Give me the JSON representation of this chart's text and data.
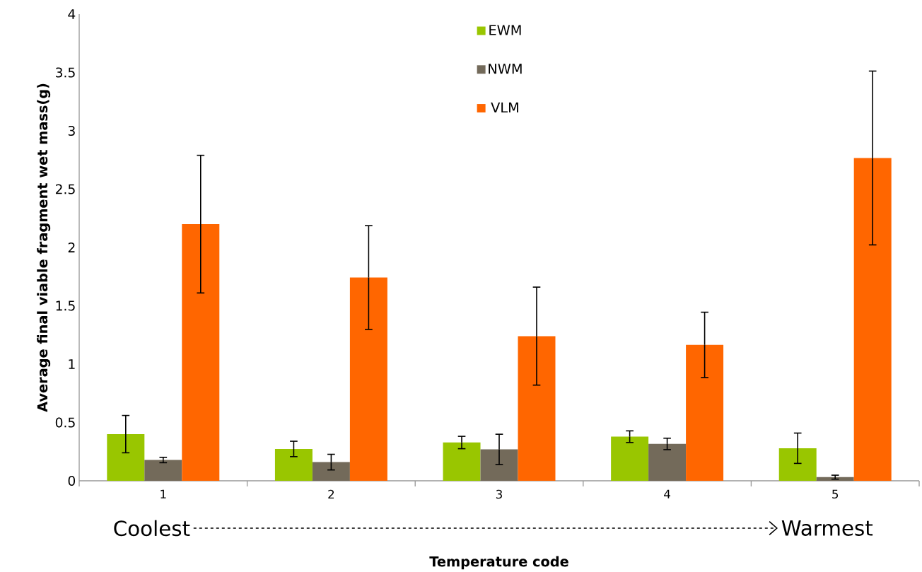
{
  "chart_data": {
    "type": "bar",
    "xlabel": "Temperature code",
    "ylabel": "Average final viable fragment wet mass(g)",
    "categories": [
      "1",
      "2",
      "3",
      "4",
      "5"
    ],
    "series": [
      {
        "name": "EWM",
        "color": "#99c600",
        "values": [
          0.4,
          0.273,
          0.328,
          0.378,
          0.279
        ],
        "errors": [
          0.16,
          0.066,
          0.053,
          0.05,
          0.13
        ]
      },
      {
        "name": "NWM",
        "color": "#736a5a",
        "values": [
          0.178,
          0.16,
          0.269,
          0.316,
          0.031
        ],
        "errors": [
          0.023,
          0.067,
          0.13,
          0.049,
          0.017
        ]
      },
      {
        "name": "VLM",
        "color": "#ff6600",
        "values": [
          2.2,
          1.742,
          1.24,
          1.165,
          2.767
        ],
        "errors": [
          0.59,
          0.445,
          0.42,
          0.28,
          0.745
        ]
      }
    ],
    "ylim": [
      0,
      4
    ],
    "yticks": [
      0,
      0.5,
      1,
      1.5,
      2,
      2.5,
      3,
      3.5,
      4
    ],
    "legend": "top",
    "grid": false,
    "annotations": [
      "Coolest",
      "Warmest"
    ]
  }
}
